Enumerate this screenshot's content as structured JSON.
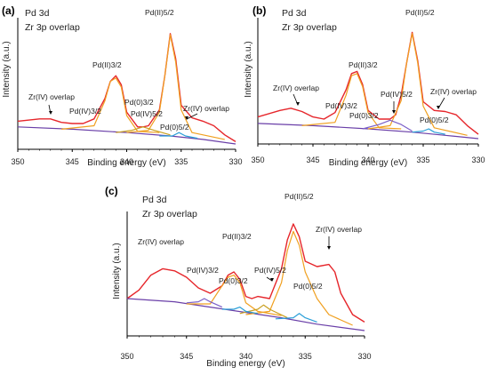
{
  "chart_data": [
    {
      "type": "line",
      "panel_label": "(a)",
      "title_lines": [
        "Pd 3d",
        "Zr 3p overlap"
      ],
      "xlabel": "Binding energy (eV)",
      "ylabel": "Intensity (a.u.)",
      "xlim": [
        350,
        330
      ],
      "x_ticks": [
        "350",
        "345",
        "340",
        "335",
        "330"
      ],
      "ylim": [
        0,
        1
      ],
      "grid": false,
      "series": [
        {
          "color": "#e6262b",
          "role": "measured",
          "x": [
            350,
            348,
            347,
            346,
            345,
            344,
            343,
            342,
            341.5,
            341,
            340.5,
            340,
            339,
            338.5,
            338,
            337,
            336.5,
            336,
            335.5,
            335,
            334,
            333,
            332,
            331,
            330
          ],
          "y": [
            0.2,
            0.22,
            0.22,
            0.19,
            0.18,
            0.18,
            0.22,
            0.4,
            0.55,
            0.6,
            0.52,
            0.28,
            0.15,
            0.15,
            0.16,
            0.3,
            0.6,
            0.97,
            0.75,
            0.34,
            0.23,
            0.2,
            0.16,
            0.08,
            0.02
          ]
        },
        {
          "color": "#6a3fa8",
          "role": "background",
          "x": [
            350,
            345,
            340,
            336,
            333,
            330
          ],
          "y": [
            0.15,
            0.13,
            0.1,
            0.07,
            0.04,
            0.0
          ]
        },
        {
          "color": "#f0a020",
          "role": "component",
          "x": [
            346,
            343,
            342,
            341.5,
            341,
            340.5,
            340,
            339,
            337
          ],
          "y": [
            0.13,
            0.16,
            0.38,
            0.55,
            0.58,
            0.5,
            0.25,
            0.11,
            0.1
          ]
        },
        {
          "color": "#f0a020",
          "role": "component",
          "x": [
            340,
            338,
            337,
            336.5,
            336,
            335.5,
            335,
            334,
            331
          ],
          "y": [
            0.1,
            0.12,
            0.28,
            0.6,
            0.96,
            0.72,
            0.3,
            0.1,
            0.04
          ]
        },
        {
          "color": "#c9a020",
          "role": "component",
          "x": [
            341,
            339.5,
            338.5,
            337.5,
            336
          ],
          "y": [
            0.1,
            0.12,
            0.15,
            0.12,
            0.08
          ]
        },
        {
          "color": "#2a9fd8",
          "role": "component",
          "x": [
            337,
            335.8,
            335.2,
            334.6,
            333.5
          ],
          "y": [
            0.07,
            0.07,
            0.1,
            0.07,
            0.05
          ]
        }
      ],
      "annotations": [
        "Pd(II)5/2",
        "Pd(II)3/2",
        "Zr(IV) overlap",
        "Pd(IV)3/2",
        "Pd(0)3/2",
        "Pd(IV)5/2",
        "Zr(IV) overlap",
        "Pd(0)5/2"
      ]
    },
    {
      "type": "line",
      "panel_label": "(b)",
      "title_lines": [
        "Pd 3d",
        "Zr 3p overlap"
      ],
      "xlabel": "Binding energy (eV)",
      "ylabel": "Intensity (a.u.)",
      "xlim": [
        350,
        330
      ],
      "x_ticks": [
        "350",
        "345",
        "340",
        "335",
        "330"
      ],
      "ylim": [
        0,
        1
      ],
      "grid": false,
      "series": [
        {
          "color": "#e6262b",
          "role": "measured",
          "x": [
            350,
            348,
            347,
            346,
            345,
            344,
            343,
            342,
            341.5,
            341,
            340.5,
            340,
            339,
            338,
            337.5,
            337,
            336.5,
            336,
            335.5,
            335,
            334,
            333,
            332,
            331,
            330
          ],
          "y": [
            0.2,
            0.26,
            0.28,
            0.25,
            0.2,
            0.18,
            0.24,
            0.45,
            0.6,
            0.62,
            0.5,
            0.26,
            0.18,
            0.18,
            0.22,
            0.4,
            0.7,
            0.98,
            0.72,
            0.34,
            0.26,
            0.25,
            0.22,
            0.12,
            0.04
          ]
        },
        {
          "color": "#6a3fa8",
          "role": "background",
          "x": [
            350,
            345,
            340,
            336,
            333,
            330
          ],
          "y": [
            0.14,
            0.12,
            0.09,
            0.06,
            0.03,
            0.0
          ]
        },
        {
          "color": "#f0a020",
          "role": "component",
          "x": [
            346,
            343,
            342,
            341.5,
            341,
            340.5,
            340,
            339,
            337
          ],
          "y": [
            0.12,
            0.15,
            0.4,
            0.58,
            0.6,
            0.48,
            0.24,
            0.1,
            0.09
          ]
        },
        {
          "color": "#f0a020",
          "role": "component",
          "x": [
            340,
            338,
            337,
            336.5,
            336,
            335.5,
            335,
            334,
            331
          ],
          "y": [
            0.09,
            0.12,
            0.35,
            0.7,
            0.97,
            0.7,
            0.3,
            0.1,
            0.03
          ]
        },
        {
          "color": "#7b5fc8",
          "role": "component",
          "x": [
            340.5,
            339,
            338,
            337,
            336
          ],
          "y": [
            0.09,
            0.13,
            0.17,
            0.13,
            0.07
          ]
        },
        {
          "color": "#2a9fd8",
          "role": "component",
          "x": [
            336,
            335,
            334.5,
            334,
            333
          ],
          "y": [
            0.06,
            0.07,
            0.09,
            0.06,
            0.04
          ]
        }
      ],
      "annotations": [
        "Pd(II)5/2",
        "Pd(II)3/2",
        "Zr(IV) overlap",
        "Pd(IV)3/2",
        "Pd(0)3/2",
        "Pd(IV)5/2",
        "Zr(IV) overlap",
        "Pd(0)5/2"
      ]
    },
    {
      "type": "line",
      "panel_label": "(c)",
      "title_lines": [
        "Pd 3d",
        "Zr 3p overlap"
      ],
      "xlabel": "Binding energy (eV)",
      "ylabel": "Intensity (a.u.)",
      "xlim": [
        350,
        330
      ],
      "x_ticks": [
        "350",
        "345",
        "340",
        "335",
        "330"
      ],
      "ylim": [
        0,
        1
      ],
      "grid": false,
      "series": [
        {
          "color": "#e6262b",
          "role": "measured",
          "x": [
            350,
            349,
            348,
            347,
            346,
            345,
            344,
            343,
            342,
            341.5,
            341,
            340.5,
            340,
            339.5,
            339,
            338,
            337,
            336.5,
            336,
            335.5,
            335,
            334,
            333,
            332.5,
            332,
            331,
            330
          ],
          "y": [
            0.3,
            0.38,
            0.52,
            0.58,
            0.56,
            0.5,
            0.4,
            0.35,
            0.42,
            0.52,
            0.55,
            0.48,
            0.32,
            0.3,
            0.32,
            0.3,
            0.58,
            0.85,
            1.0,
            0.88,
            0.65,
            0.6,
            0.62,
            0.55,
            0.35,
            0.15,
            0.08
          ]
        },
        {
          "color": "#6a3fa8",
          "role": "background",
          "x": [
            350,
            346,
            343,
            340,
            337,
            334,
            330
          ],
          "y": [
            0.3,
            0.27,
            0.22,
            0.17,
            0.12,
            0.06,
            0.0
          ]
        },
        {
          "color": "#f0a020",
          "role": "component",
          "x": [
            345,
            343,
            342,
            341.5,
            341,
            340.5,
            340,
            339,
            337
          ],
          "y": [
            0.25,
            0.25,
            0.42,
            0.5,
            0.52,
            0.45,
            0.26,
            0.18,
            0.14
          ]
        },
        {
          "color": "#f0a020",
          "role": "component",
          "x": [
            340,
            338,
            337,
            336.5,
            336,
            335.5,
            335,
            334,
            333,
            331
          ],
          "y": [
            0.15,
            0.18,
            0.45,
            0.75,
            0.93,
            0.8,
            0.55,
            0.3,
            0.15,
            0.05
          ]
        },
        {
          "color": "#7b5fc8",
          "role": "component",
          "x": [
            345,
            344,
            343.5,
            343,
            342
          ],
          "y": [
            0.26,
            0.27,
            0.3,
            0.27,
            0.22
          ]
        },
        {
          "color": "#c9a020",
          "role": "component",
          "x": [
            340.5,
            339,
            338.5,
            338,
            336.5
          ],
          "y": [
            0.16,
            0.2,
            0.24,
            0.2,
            0.12
          ]
        },
        {
          "color": "#2a9fd8",
          "role": "component",
          "x": [
            342,
            341,
            340.5,
            340,
            339
          ],
          "y": [
            0.2,
            0.2,
            0.22,
            0.18,
            0.16
          ]
        },
        {
          "color": "#2a9fd8",
          "role": "component",
          "x": [
            337.5,
            336,
            335.5,
            335,
            334
          ],
          "y": [
            0.11,
            0.12,
            0.16,
            0.12,
            0.08
          ]
        }
      ],
      "annotations": [
        "Pd(II)5/2",
        "Zr(IV) overlap",
        "Zr(IV) overlap",
        "Pd(II)3/2",
        "Pd(IV)3/2",
        "Pd(0)3/2",
        "Pd(IV)5/2",
        "Pd(0)5/2"
      ]
    }
  ]
}
